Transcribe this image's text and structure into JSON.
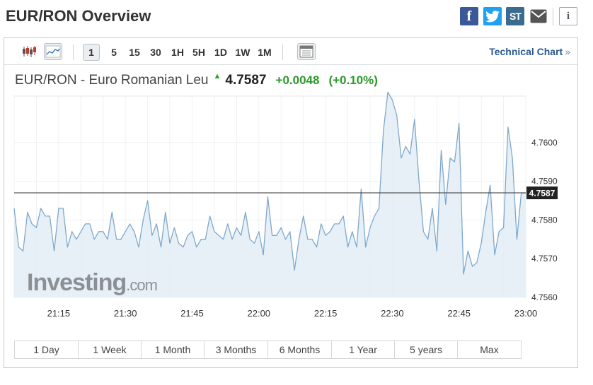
{
  "page": {
    "title": "EUR/RON Overview"
  },
  "share": {
    "facebook_glyph": "f",
    "stocktwits_glyph": "ST",
    "info_glyph": "i"
  },
  "toolbar": {
    "icons": [
      "candlestick-chart-icon",
      "line-chart-icon",
      "calendar-icon"
    ],
    "periods": [
      "1",
      "5",
      "15",
      "30",
      "1H",
      "5H",
      "1D",
      "1W",
      "1M"
    ],
    "active_period": "1",
    "technical_link": "Technical Chart",
    "technical_chevron": "»"
  },
  "quote": {
    "name": "EUR/RON - Euro Romanian Leu",
    "price": "4.7587",
    "change": "+0.0048",
    "change_pct": "(+0.10%)",
    "direction": "up"
  },
  "watermark": {
    "brand": "Investing",
    "suffix": ".com"
  },
  "colors": {
    "line": "#7fa8cc",
    "area": "#e3edf5",
    "positive": "#2a9a2a",
    "link": "#2a5a8c",
    "current_label_bg": "#222222"
  },
  "chart_data": {
    "type": "area",
    "x_ticks": [
      "21:15",
      "21:30",
      "21:45",
      "22:00",
      "22:15",
      "22:30",
      "22:45",
      "23:00"
    ],
    "y_ticks": [
      4.756,
      4.757,
      4.758,
      4.759,
      4.76
    ],
    "y_tick_labels": [
      "4.7560",
      "4.7570",
      "4.7580",
      "4.7590",
      "4.7600"
    ],
    "ylim": [
      4.756,
      4.7612
    ],
    "current_value": 4.7587,
    "current_label": "4.7587",
    "grid": true,
    "x_start": "21:05",
    "x_step_minutes": 1,
    "values": [
      4.7583,
      4.7573,
      4.7572,
      4.7582,
      4.7579,
      4.7578,
      4.7583,
      4.7581,
      4.7581,
      4.7572,
      4.7583,
      4.7583,
      4.7573,
      4.7577,
      4.7575,
      4.7577,
      4.7579,
      4.7579,
      4.7575,
      4.7577,
      4.7577,
      4.7575,
      4.7582,
      4.7575,
      4.7575,
      4.7577,
      4.7579,
      4.7577,
      4.7573,
      4.758,
      4.7585,
      4.7576,
      4.7579,
      4.7573,
      4.7582,
      4.7574,
      4.7578,
      4.7574,
      4.7573,
      4.7576,
      4.7577,
      4.7573,
      4.7575,
      4.7575,
      4.7581,
      4.7577,
      4.7576,
      4.7575,
      4.7579,
      4.7575,
      4.7578,
      4.7576,
      4.7582,
      4.7575,
      4.7574,
      4.7577,
      4.7571,
      4.7586,
      4.7576,
      4.7576,
      4.7578,
      4.7575,
      4.7577,
      4.7567,
      4.7575,
      4.7581,
      4.7575,
      4.7575,
      4.7573,
      4.7579,
      4.7576,
      4.7577,
      4.7579,
      4.7579,
      4.7581,
      4.7573,
      4.7577,
      4.7573,
      4.7588,
      4.7573,
      4.7578,
      4.7581,
      4.7583,
      4.7603,
      4.7613,
      4.7611,
      4.7607,
      4.7596,
      4.7599,
      4.7597,
      4.7606,
      4.759,
      4.7577,
      4.7575,
      4.7583,
      4.7572,
      4.7598,
      4.7584,
      4.7596,
      4.7595,
      4.7605,
      4.7566,
      4.7572,
      4.7568,
      4.7569,
      4.7574,
      4.7582,
      4.7589,
      4.7571,
      4.7577,
      4.7578,
      4.7604,
      4.7596,
      4.7575,
      4.7587,
      4.7587
    ]
  },
  "ranges": [
    {
      "label": "1 Day",
      "width": 90
    },
    {
      "label": "1 Week",
      "width": 89
    },
    {
      "label": "1 Month",
      "width": 89
    },
    {
      "label": "3 Months",
      "width": 90
    },
    {
      "label": "6 Months",
      "width": 90
    },
    {
      "label": "1 Year",
      "width": 89
    },
    {
      "label": "5 years",
      "width": 89
    },
    {
      "label": "Max",
      "width": 89
    }
  ]
}
